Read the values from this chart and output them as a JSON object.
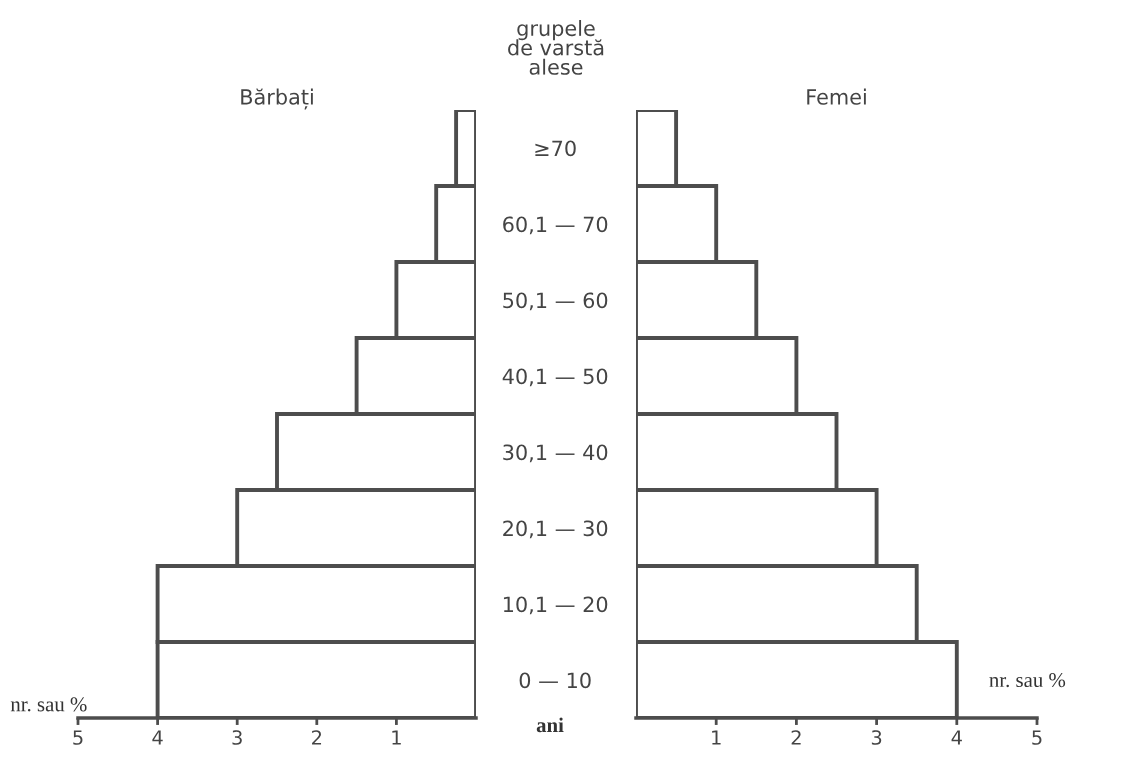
{
  "chart_data": [
    {
      "type": "bar",
      "orientation": "horizontal",
      "title": "Bărbați",
      "xlabel": "nr. sau %",
      "categories": [
        "≥70",
        "60,1 — 70",
        "50,1 — 60",
        "40,1 — 50",
        "30,1 — 40",
        "20,1 — 30",
        "10,1 — 20",
        "0 — 10"
      ],
      "values": [
        0.25,
        0.5,
        1.0,
        1.5,
        2.5,
        3.0,
        4.0,
        4.0
      ],
      "color": "#4d4d4d",
      "xlim": [
        5,
        0
      ],
      "xticks": [
        5,
        4,
        3,
        2,
        1
      ],
      "grid": false,
      "legend": false,
      "annotations": [
        "grupele\nde varstă\nalese",
        "ani"
      ]
    },
    {
      "type": "bar",
      "orientation": "horizontal",
      "title": "Femei",
      "xlabel": "nr. sau %",
      "categories": [
        null,
        null,
        null,
        null,
        null,
        null,
        null,
        null
      ],
      "values": [
        0.5,
        1.0,
        1.5,
        2.0,
        2.5,
        3.0,
        3.5,
        4.0
      ],
      "color": "#4d4d4d",
      "xlim": [
        0,
        5
      ],
      "xticks": [
        1,
        2,
        3,
        4,
        5
      ],
      "tick_labels": "x",
      "grid": false,
      "legend": false
    }
  ]
}
